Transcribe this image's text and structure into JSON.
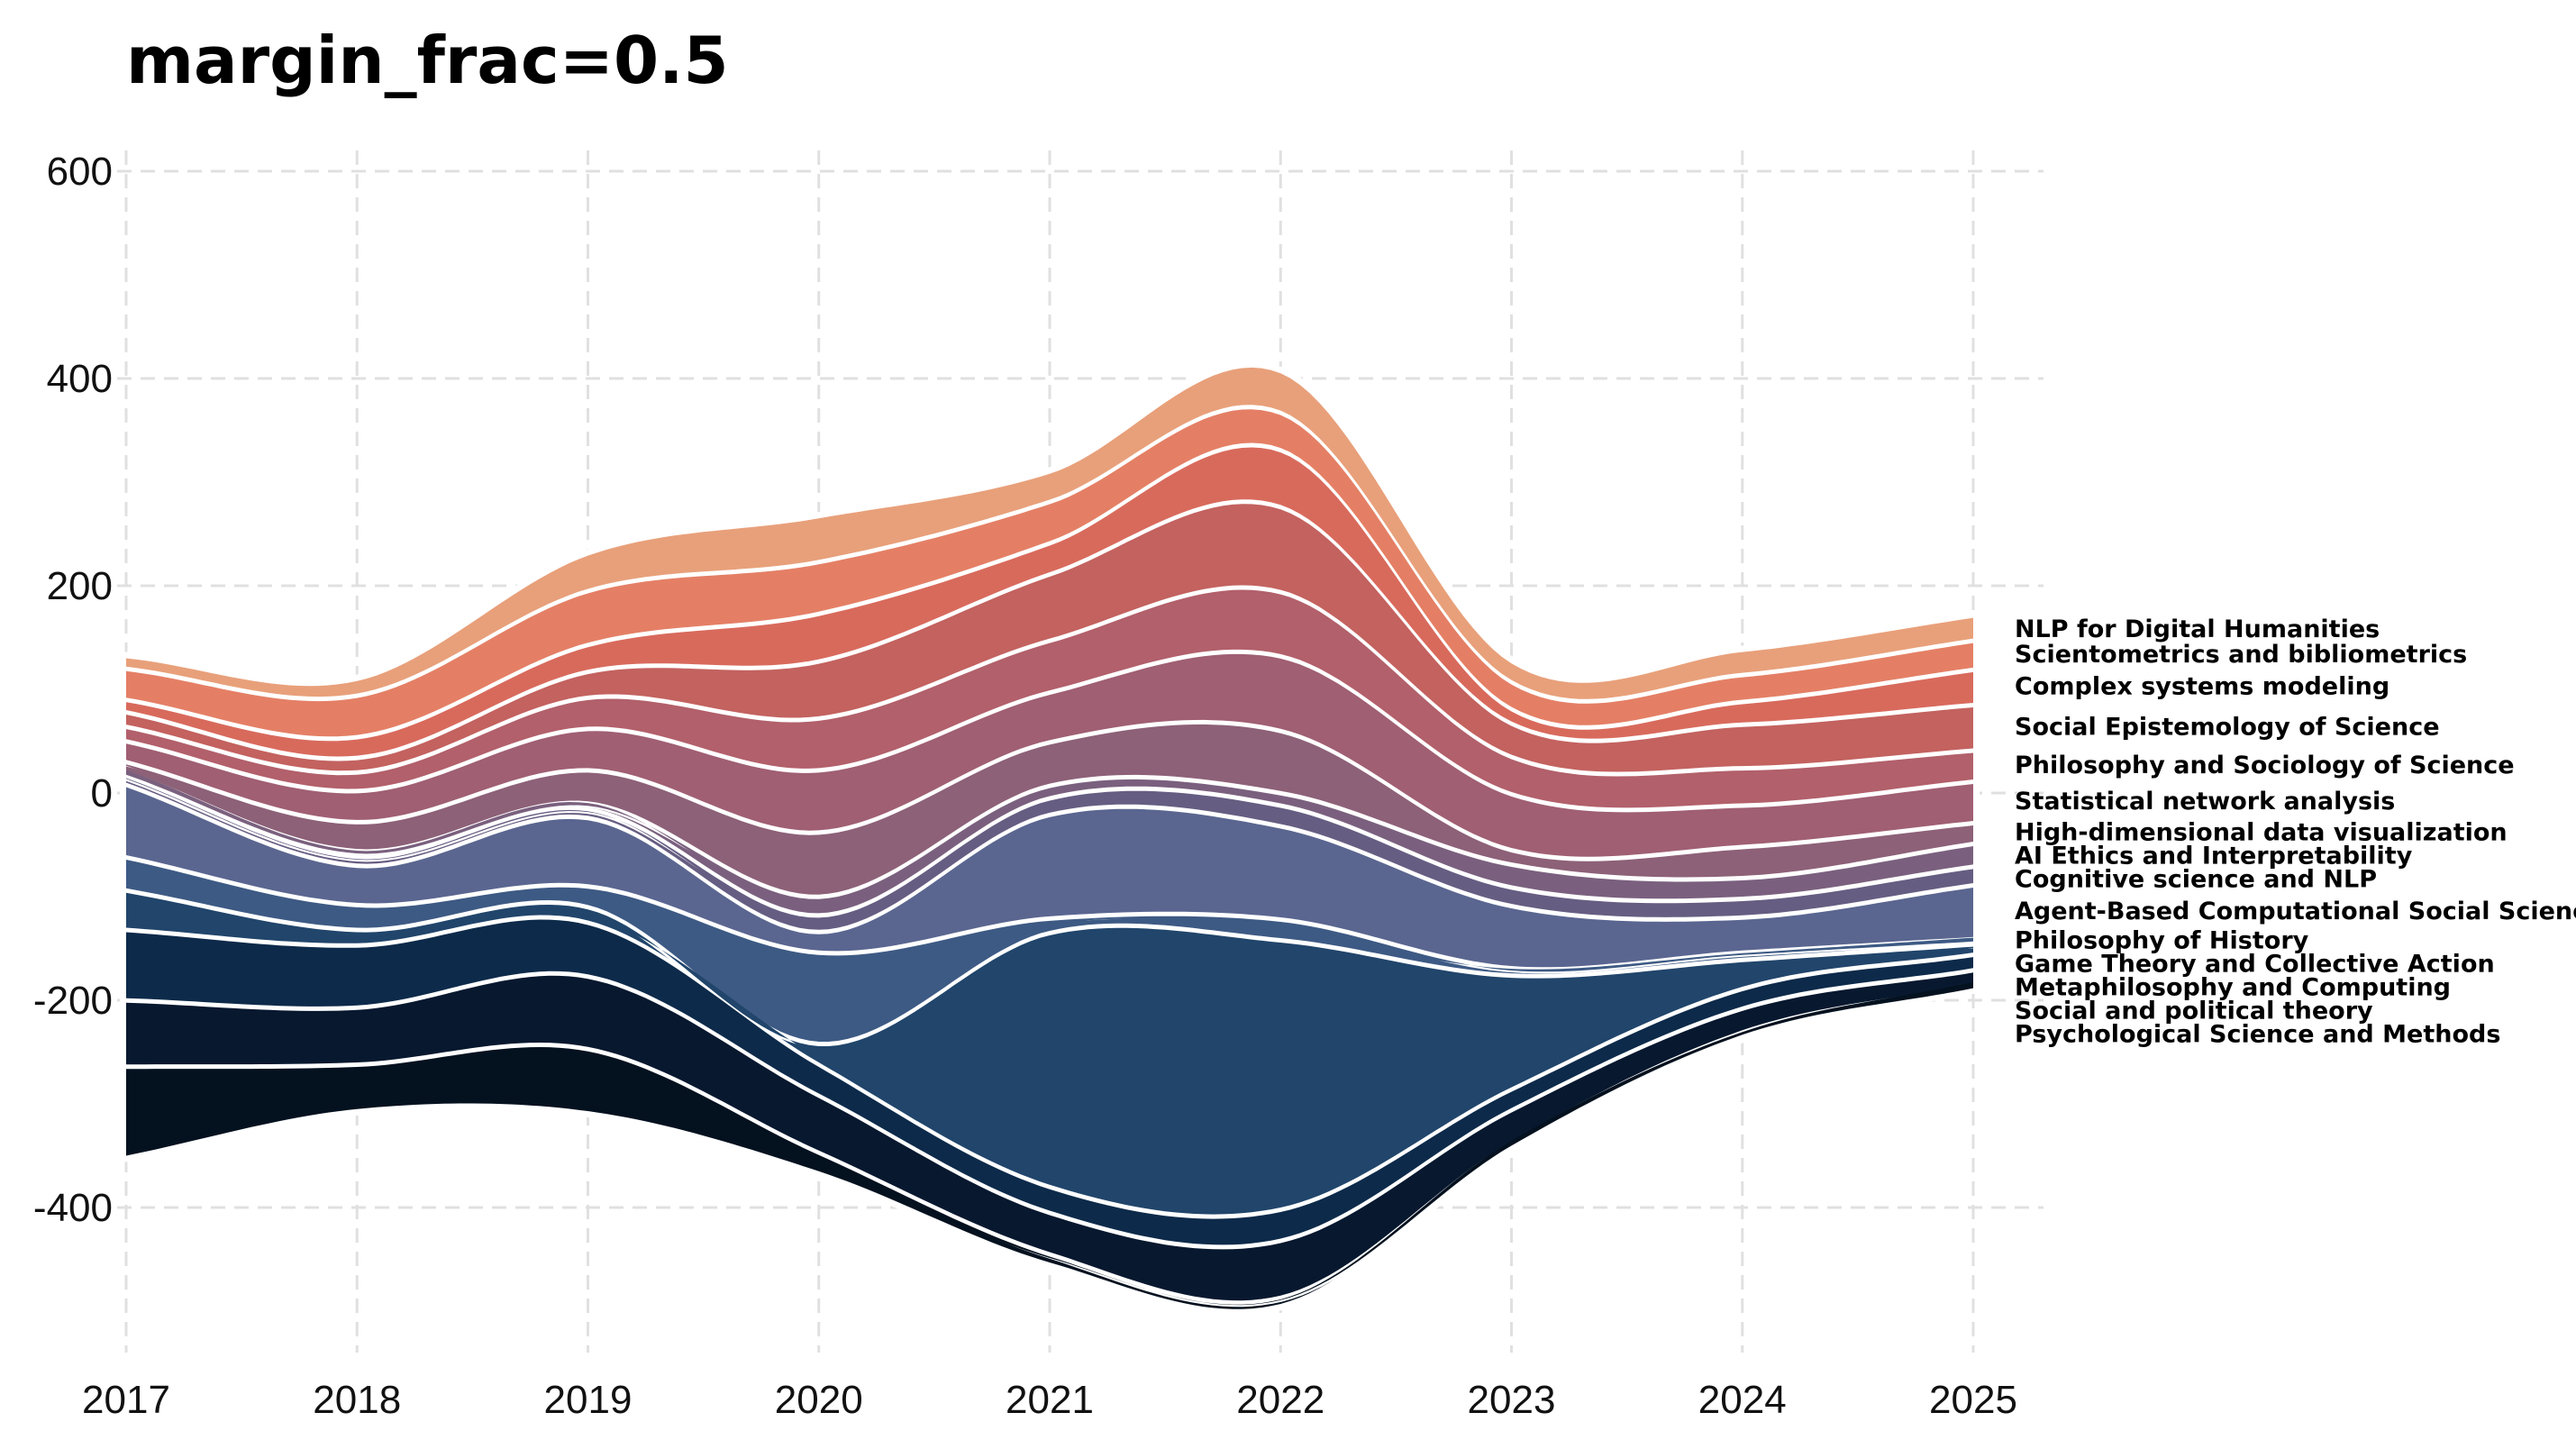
{
  "chart_data": {
    "type": "area",
    "title": "margin_frac=0.5",
    "xlabel": "",
    "ylabel": "",
    "x": [
      2017,
      2018,
      2019,
      2020,
      2021,
      2022,
      2023,
      2024,
      2025
    ],
    "xlim": [
      2017,
      2025.3
    ],
    "ylim": [
      -540,
      620
    ],
    "yticks": [
      600,
      400,
      200,
      0,
      -200,
      -400
    ],
    "grid": true,
    "legend": "inline-right",
    "baseline": [
      -350,
      -305,
      -307,
      -365,
      -453,
      -493,
      -340,
      -235,
      -187
    ],
    "series": [
      {
        "name": "Psychological Science and Methods",
        "color": "#04111f",
        "values": [
          88,
          45,
          62,
          20,
          10,
          8,
          4,
          6,
          3
        ]
      },
      {
        "name": "Social and political theory",
        "color": "#07182f",
        "values": [
          64,
          55,
          70,
          55,
          40,
          55,
          32,
          23,
          15
        ]
      },
      {
        "name": "Metaphilosophy and Computing",
        "color": "#0d2a4a",
        "values": [
          68,
          60,
          52,
          30,
          25,
          30,
          20,
          19,
          15
        ]
      },
      {
        "name": "Game Theory and Collective Action",
        "color": "#21456b",
        "values": [
          38,
          15,
          15,
          20,
          245,
          260,
          110,
          28,
          10
        ]
      },
      {
        "name": "Philosophy of History",
        "color": "#3d5a84",
        "values": [
          32,
          24,
          20,
          88,
          14,
          20,
          7,
          7,
          5
        ]
      },
      {
        "name": "Agent-Based Computational Social Science",
        "color": "#5a6690",
        "values": [
          70,
          38,
          66,
          20,
          100,
          90,
          60,
          34,
          52
        ]
      },
      {
        "name": "Cognitive science and NLP",
        "color": "#665d82",
        "values": [
          8,
          8,
          8,
          16,
          16,
          20,
          18,
          18,
          18
        ]
      },
      {
        "name": "AI Ethics and Interpretability",
        "color": "#7a607e",
        "values": [
          4,
          6,
          6,
          18,
          12,
          12,
          22,
          20,
          22
        ]
      },
      {
        "name": "High-dimensional data visualization",
        "color": "#8d6178",
        "values": [
          10,
          28,
          32,
          62,
          42,
          60,
          14,
          30,
          20
        ]
      },
      {
        "name": "Statistical network analysis",
        "color": "#a05f73",
        "values": [
          20,
          30,
          40,
          60,
          48,
          72,
          54,
          40,
          40
        ]
      },
      {
        "name": "Philosophy and Sociology of Science",
        "color": "#b2606b",
        "values": [
          14,
          18,
          30,
          50,
          50,
          62,
          36,
          36,
          30
        ]
      },
      {
        "name": "Social Epistemology of Science",
        "color": "#c3625f",
        "values": [
          14,
          14,
          25,
          55,
          64,
          82,
          32,
          42,
          44
        ]
      },
      {
        "name": "Complex systems modeling",
        "color": "#d86a5c",
        "values": [
          12,
          20,
          26,
          46,
          30,
          55,
          14,
          22,
          34
        ]
      },
      {
        "name": "Scientometrics and bibliometrics",
        "color": "#e47f65",
        "values": [
          30,
          40,
          52,
          50,
          40,
          36,
          26,
          26,
          28
        ]
      },
      {
        "name": "NLP for Digital Humanities",
        "color": "#e8a07a",
        "values": [
          8,
          12,
          32,
          40,
          25,
          36,
          16,
          20,
          20
        ]
      }
    ]
  }
}
